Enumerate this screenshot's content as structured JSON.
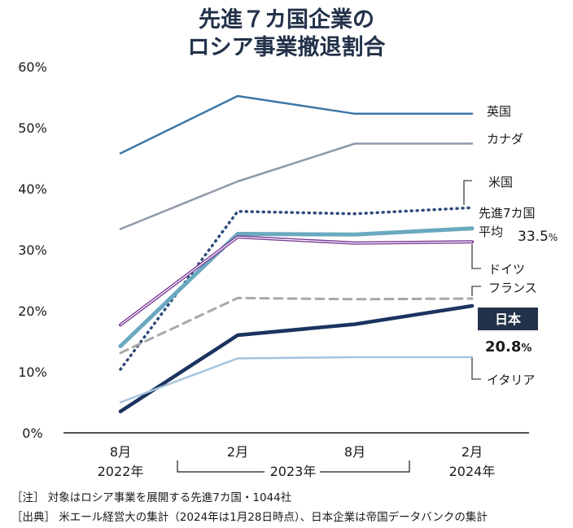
{
  "chart_data": {
    "type": "line",
    "title_lines": [
      "先進７カ国企業の",
      "ロシア事業撤退割合"
    ],
    "ylim": [
      0,
      60
    ],
    "yticks": [
      "0%",
      "10%",
      "20%",
      "30%",
      "40%",
      "50%",
      "60%"
    ],
    "x_ticks": [
      {
        "line1": "8月",
        "line2": "2022年"
      },
      {
        "line1": "2月",
        "line2": ""
      },
      {
        "line1": "8月",
        "line2": ""
      },
      {
        "line1": "2月",
        "line2": "2024年"
      }
    ],
    "year_bracket_label": "2023年",
    "series": [
      {
        "key": "uk",
        "name": "英国",
        "values": [
          45.8,
          55.2,
          52.3,
          52.3
        ],
        "color": "#3d77a6",
        "width": 2.5,
        "dash": ""
      },
      {
        "key": "canada",
        "name": "カナダ",
        "values": [
          33.4,
          41.2,
          47.4,
          47.4
        ],
        "color": "#8e99aa",
        "width": 2.5,
        "dash": ""
      },
      {
        "key": "us",
        "name": "米国",
        "values": [
          10.4,
          36.3,
          35.9,
          36.9
        ],
        "color": "#2e4a7a",
        "width": 3.5,
        "dash": "1,6"
      },
      {
        "key": "g7avg",
        "name": "先進7カ国 平均",
        "values": [
          14.2,
          32.6,
          32.5,
          33.5
        ],
        "color": "#6aa9bf",
        "width": 5,
        "dash": ""
      },
      {
        "key": "germany",
        "name": "ドイツ",
        "values": [
          17.7,
          32.1,
          31.1,
          31.3
        ],
        "color": "#7a3d99",
        "width": 4,
        "dash": ""
      },
      {
        "key": "france",
        "name": "フランス",
        "values": [
          13.1,
          22.1,
          21.9,
          22.0
        ],
        "color": "#a8a8a8",
        "width": 3,
        "dash": "10,7"
      },
      {
        "key": "japan",
        "name": "日本",
        "values": [
          3.5,
          16.0,
          17.8,
          20.8
        ],
        "color": "#1b3360",
        "width": 4.5,
        "dash": ""
      },
      {
        "key": "italy",
        "name": "イタリア",
        "values": [
          5.0,
          12.2,
          12.4,
          12.4
        ],
        "color": "#a7c4dd",
        "width": 2.5,
        "dash": ""
      }
    ],
    "labels": {
      "uk": "英国",
      "canada": "カナダ",
      "us": "米国",
      "g7_line1": "先進7カ国",
      "g7_line2": "平均",
      "g7_value": "33.5",
      "germany": "ドイツ",
      "france": "フランス",
      "japan": "日本",
      "japan_value": "20.8",
      "italy": "イタリア",
      "percent": "%"
    },
    "notes": [
      "［注］ 対象はロシア事業を展開する先進7カ国・1044社",
      "［出典］ 米エール経営大の集計（2024年は1月28日時点）、日本企業は帝国データバンクの集計"
    ]
  }
}
